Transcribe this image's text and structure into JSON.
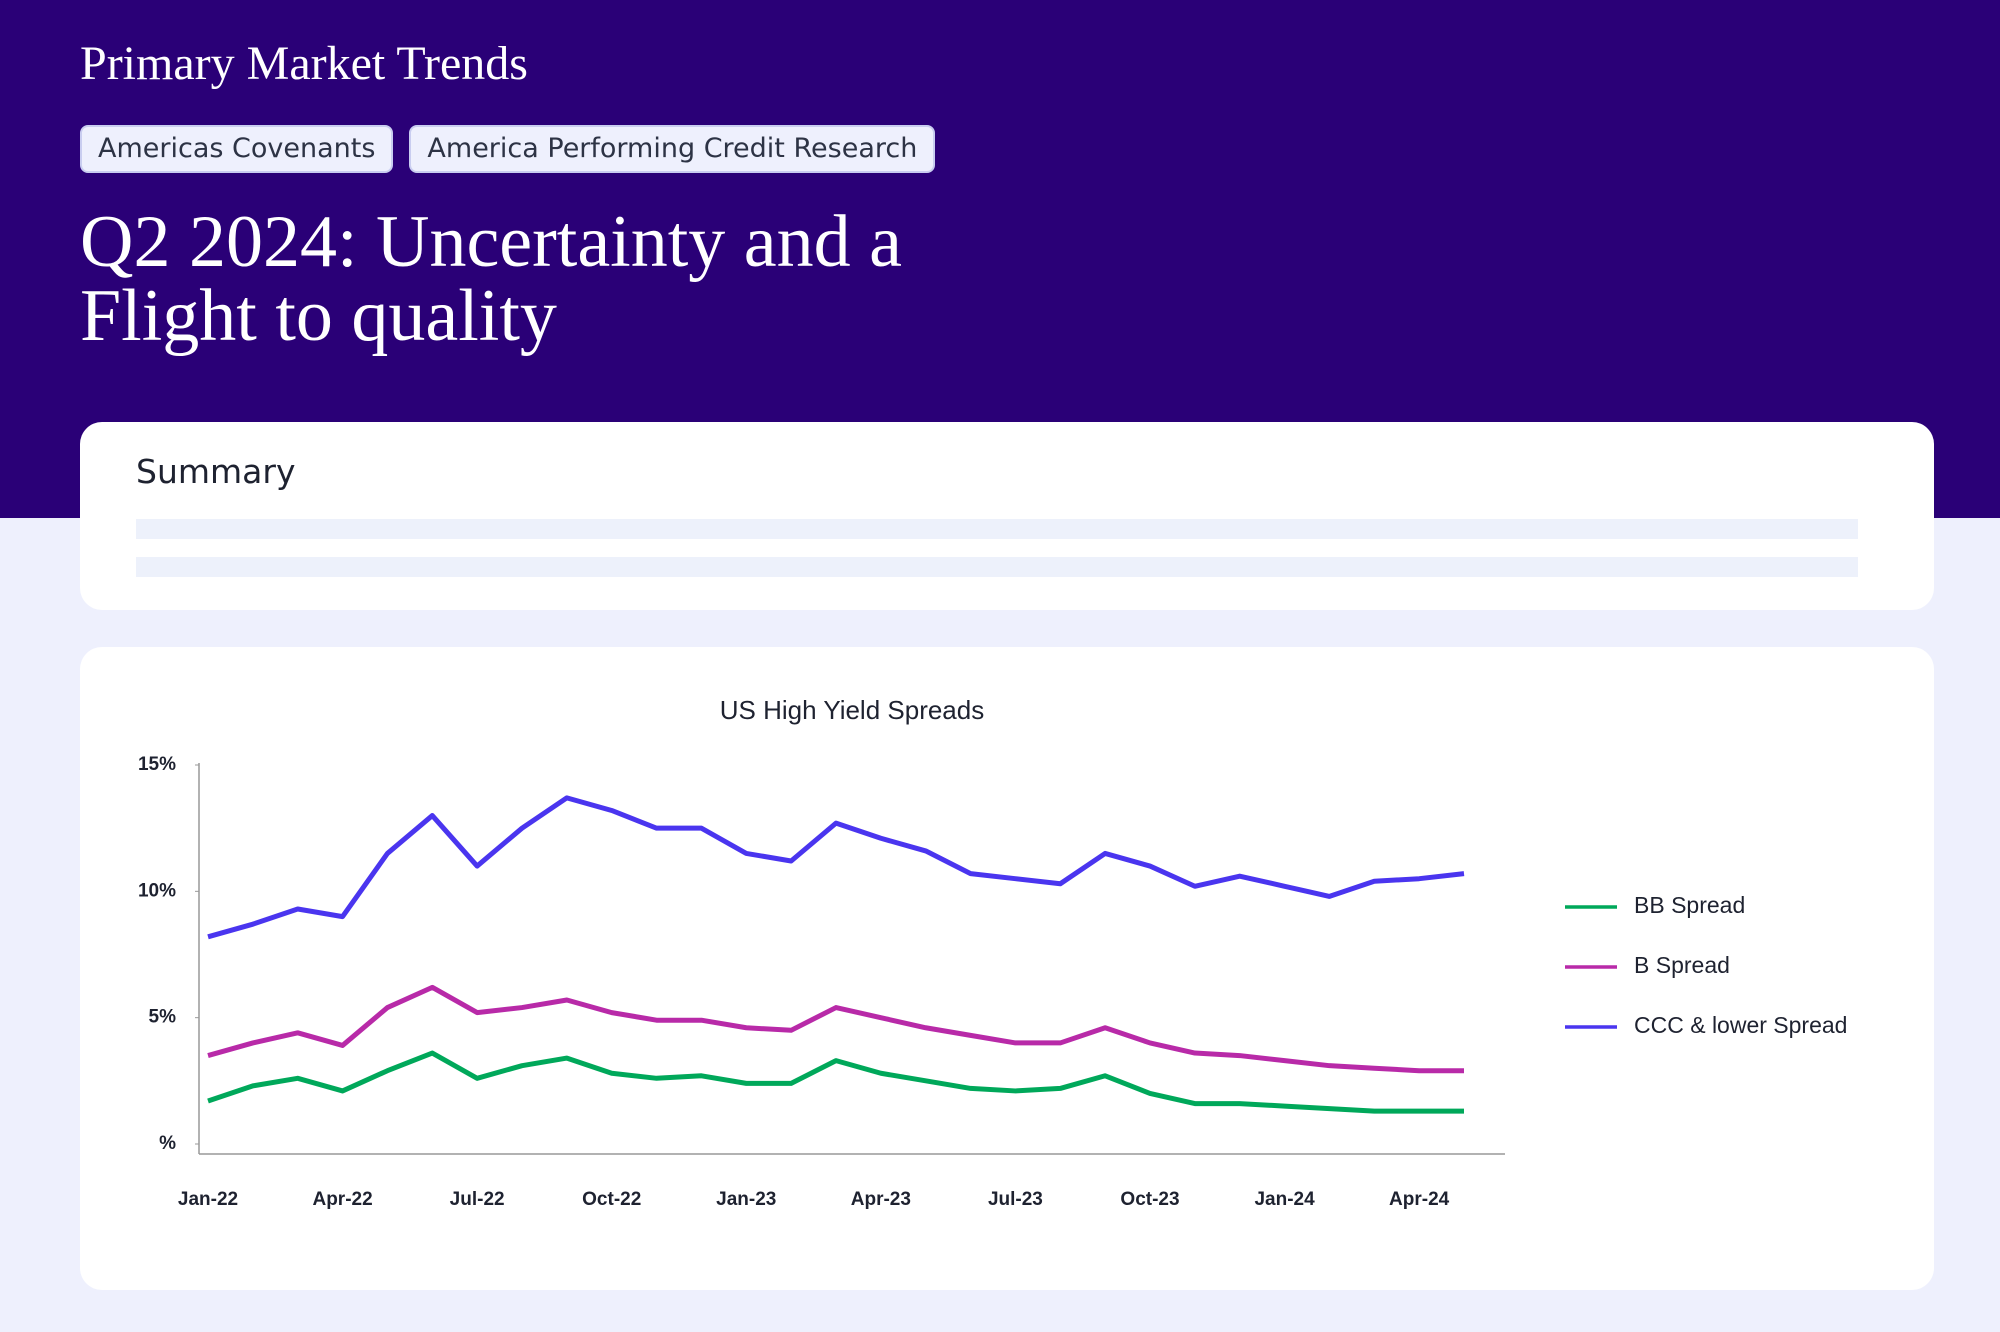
{
  "header": {
    "title": "Primary Market Trends",
    "tags": [
      "Americas Covenants",
      "America Performing Credit Research"
    ],
    "headline": "Q2 2024: Uncertainty and a Flight to quality"
  },
  "summary": {
    "title": "Summary"
  },
  "chart_data": {
    "type": "line",
    "title": "US High Yield Spreads",
    "categories": [
      "Jan-22",
      null,
      null,
      "Apr-22",
      null,
      null,
      "Jul-22",
      null,
      null,
      "Oct-22",
      null,
      null,
      "Jan-23",
      null,
      null,
      "Apr-23",
      null,
      null,
      "Jul-23",
      null,
      null,
      "Oct-23",
      null,
      null,
      "Jan-24",
      null,
      null,
      "Apr-24",
      null
    ],
    "series": [
      {
        "name": "BB Spread",
        "color": "#00a85a",
        "values": [
          1.7,
          2.3,
          2.6,
          2.1,
          2.9,
          3.6,
          2.6,
          3.1,
          3.4,
          2.8,
          2.6,
          2.7,
          2.4,
          2.4,
          3.3,
          2.8,
          2.5,
          2.2,
          2.1,
          2.2,
          2.7,
          2.0,
          1.6,
          1.6,
          1.5,
          1.4,
          1.3,
          1.3,
          1.3
        ]
      },
      {
        "name": "B Spread",
        "color": "#b82aa8",
        "values": [
          3.5,
          4.0,
          4.4,
          3.9,
          5.4,
          6.2,
          5.2,
          5.4,
          5.7,
          5.2,
          4.9,
          4.9,
          4.6,
          4.5,
          5.4,
          5.0,
          4.6,
          4.3,
          4.0,
          4.0,
          4.6,
          4.0,
          3.6,
          3.5,
          3.3,
          3.1,
          3.0,
          2.9,
          2.9
        ]
      },
      {
        "name": "CCC & lower Spread",
        "color": "#4a35ef",
        "values": [
          8.2,
          8.7,
          9.3,
          9.0,
          11.5,
          13.0,
          11.0,
          12.5,
          13.7,
          13.2,
          12.5,
          12.5,
          11.5,
          11.2,
          12.7,
          12.1,
          11.6,
          10.7,
          10.5,
          10.3,
          11.5,
          11.0,
          10.2,
          10.6,
          10.2,
          9.8,
          10.4,
          10.5,
          10.7
        ]
      }
    ],
    "ylim": [
      0,
      15
    ],
    "yticks": [
      {
        "value": 0,
        "label": "%"
      },
      {
        "value": 5,
        "label": "5%"
      },
      {
        "value": 10,
        "label": "10%"
      },
      {
        "value": 15,
        "label": "15%"
      }
    ],
    "legend": "right"
  }
}
